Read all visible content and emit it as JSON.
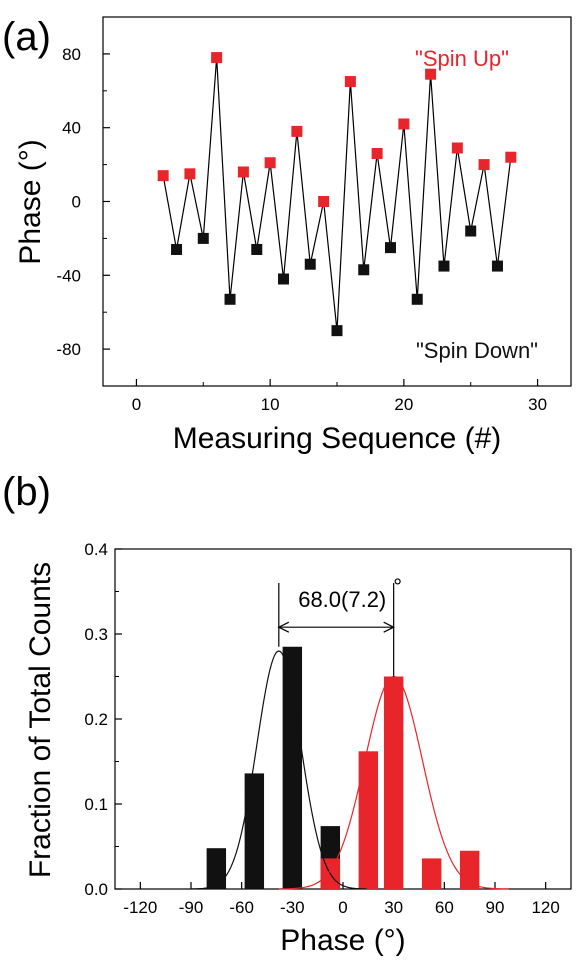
{
  "chart_data": [
    {
      "type": "line",
      "panel_label": "(a)",
      "xlabel": "Measuring Sequence (#)",
      "ylabel": "Phase (°)",
      "xlim": [
        -2.5,
        32.5
      ],
      "ylim": [
        -100,
        100
      ],
      "x_ticks": [
        0,
        10,
        20,
        30
      ],
      "y_ticks": [
        -80,
        -40,
        0,
        40,
        80
      ],
      "y_tick_labels": [
        "-80",
        "-40",
        "0",
        "40",
        "80"
      ],
      "grid": false,
      "series": [
        {
          "name": "\"Spin Up\"",
          "color": "#e8252b",
          "x": [
            2,
            4,
            6,
            8,
            10,
            12,
            14,
            16,
            18,
            20,
            22,
            24,
            26,
            28
          ],
          "y": [
            14,
            15,
            78,
            16,
            21,
            38,
            0,
            65,
            26,
            42,
            69,
            29,
            20,
            24
          ]
        },
        {
          "name": "\"Spin Down\"",
          "color": "#111111",
          "x": [
            3,
            5,
            7,
            9,
            11,
            13,
            15,
            17,
            19,
            21,
            23,
            25,
            27
          ],
          "y": [
            -26,
            -20,
            -53,
            -26,
            -42,
            -34,
            -70,
            -37,
            -25,
            -53,
            -35,
            -16,
            -35
          ]
        }
      ],
      "annotations": [
        {
          "text": "\"Spin Up\"",
          "color": "#e8252b"
        },
        {
          "text": "\"Spin Down\"",
          "color": "#111111"
        }
      ]
    },
    {
      "type": "bar",
      "panel_label": "(b)",
      "xlabel": "Phase (°)",
      "ylabel": "Fraction of Total Counts",
      "xlim": [
        -135,
        135
      ],
      "ylim": [
        0,
        0.4
      ],
      "x_ticks": [
        -120,
        -90,
        -60,
        -30,
        0,
        30,
        60,
        90,
        120
      ],
      "y_ticks": [
        0.0,
        0.1,
        0.2,
        0.3,
        0.4
      ],
      "y_tick_labels": [
        "0.0",
        "0.1",
        "0.2",
        "0.3",
        "0.4"
      ],
      "bin_width": 11.5,
      "grid": false,
      "series": [
        {
          "name": "Spin Down",
          "color": "#111111",
          "x": [
            -75,
            -52.5,
            -30,
            -7.5
          ],
          "values": [
            0.048,
            0.136,
            0.285,
            0.074
          ],
          "fit_center": -38,
          "fit_sigma": 13,
          "fit_amp": 0.28
        },
        {
          "name": "Spin Up",
          "color": "#e8252b",
          "x": [
            -7.5,
            15,
            30,
            52.5,
            75
          ],
          "values": [
            0.036,
            0.162,
            0.25,
            0.036,
            0.045
          ],
          "fit_center": 30,
          "fit_sigma": 17,
          "fit_amp": 0.25
        }
      ],
      "annotation": {
        "text": "68.0(7.2)",
        "degree": "°",
        "from_x": -38,
        "to_x": 30
      }
    }
  ]
}
